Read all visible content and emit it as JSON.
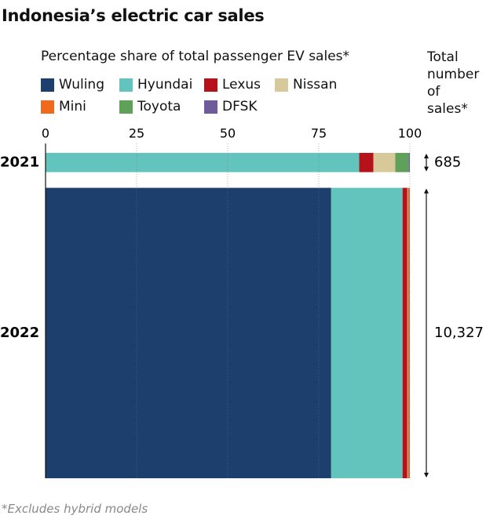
{
  "chart_data": {
    "type": "marimekko",
    "title": "Indonesia’s electric car sales",
    "subtitle": "Percentage share of total passenger EV sales*",
    "total_label": "Total number of sales*",
    "footnote": "*Excludes hybrid models",
    "categories": [
      "2021",
      "2022"
    ],
    "totals": [
      685,
      10327
    ],
    "totals_labels": [
      "685",
      "10,327"
    ],
    "xlim": [
      0,
      100
    ],
    "xticks": [
      0,
      25,
      50,
      75,
      100
    ],
    "grid": true,
    "series": [
      {
        "name": "Wuling",
        "color": "#1c3f6e",
        "values": [
          0,
          78.4
        ]
      },
      {
        "name": "Hyundai",
        "color": "#63c4be",
        "values": [
          86.1,
          19.6
        ]
      },
      {
        "name": "Lexus",
        "color": "#b5121b",
        "values": [
          3.9,
          1.3
        ]
      },
      {
        "name": "Nissan",
        "color": "#d8c99b",
        "values": [
          6.0,
          0.1
        ]
      },
      {
        "name": "Mini",
        "color": "#ee6a1f",
        "values": [
          0,
          0.4
        ]
      },
      {
        "name": "Toyota",
        "color": "#5fa05a",
        "values": [
          3.7,
          0.1
        ]
      },
      {
        "name": "DFSK",
        "color": "#6f5b9b",
        "values": [
          0.3,
          0.1
        ]
      }
    ]
  }
}
